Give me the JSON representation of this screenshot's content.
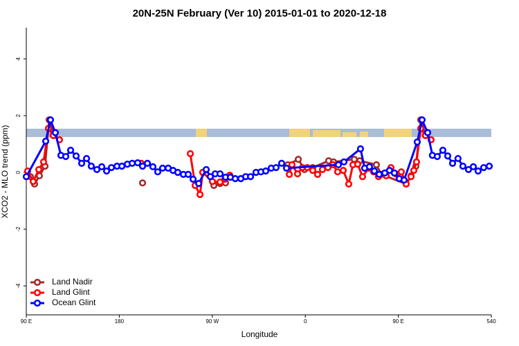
{
  "chart_data": {
    "type": "line",
    "title": "20N-25N February (Ver 10)   2015-01-01 to 2020-12-18",
    "x_label": "Longitude",
    "y_label": "XCO2 - MLO trend (ppm)",
    "xlim": [
      90,
      540
    ],
    "ylim": [
      -5.02,
      5.1
    ],
    "xticks": [
      {
        "value": 90,
        "label": "90 E"
      },
      180,
      {
        "value": 270,
        "label": "90 W"
      },
      {
        "value": 360,
        "label": "0"
      },
      {
        "value": 450,
        "label": "90 E"
      },
      540
    ],
    "yticks": [
      -4,
      -2,
      0,
      2,
      4
    ],
    "legend": "bottomleft",
    "series": [
      {
        "name": "Land Nadir",
        "color": "#a52a2a",
        "x": [
          94,
          98,
          102.7,
          108.1,
          112.1,
          116.8,
          null,
          202.5,
          null,
          271.5,
          277.5,
          282.8,
          null,
          343.1,
          353.2,
          359.2,
          367.2,
          382.6,
          387.3,
          407.4,
          412.7,
          428.8,
          433.5,
          457.6,
          462.3,
          467,
          471.7,
          476.3
        ],
        "values": [
          -0.15,
          -0.41,
          -0.12,
          0.22,
          1.85,
          1.3,
          null,
          -0.37,
          null,
          -0.46,
          -0.39,
          -0.37,
          null,
          0.27,
          0.46,
          0.1,
          0.17,
          0.41,
          0.37,
          0.46,
          0.41,
          0.27,
          -0.07,
          -0.41,
          -0.12,
          0.22,
          1.85,
          1.3
        ]
      },
      {
        "name": "Land Glint",
        "color": "#ff0000",
        "x": [
          91.3,
          96.7,
          102.1,
          106.7,
          111.4,
          116.1,
          122.1,
          null,
          201.2,
          null,
          248.7,
          253.4,
          258.1,
          260.7,
          270.1,
          277.5,
          282.2,
          286.9,
          null,
          344.5,
          347.1,
          352.5,
          357.2,
          361.9,
          367.2,
          371.9,
          376.6,
          381.9,
          386.6,
          391.3,
          396.7,
          402,
          406.1,
          410.7,
          415.4,
          421.4,
          426.1,
          430.8,
          438.2,
          442.9,
          447.6,
          452.9,
          457.6,
          462.3,
          465,
          467.6,
          471.7,
          476.3,
          481.7
        ],
        "values": [
          0.05,
          -0.32,
          0.1,
          0.37,
          1.55,
          1.3,
          1.15,
          null,
          0.32,
          null,
          0.66,
          -0.46,
          -0.78,
          0,
          -0.32,
          -0.34,
          -0.24,
          -0.1,
          null,
          -0.07,
          0.27,
          -0.05,
          0.17,
          0.17,
          0.07,
          -0.07,
          0.1,
          0.17,
          0.27,
          0.02,
          0.07,
          -0.41,
          0.27,
          0.29,
          -0.15,
          0.15,
          0.02,
          -0.15,
          -0.12,
          0.17,
          -0.05,
          0.02,
          -0.41,
          -0.15,
          0.07,
          0.37,
          1.55,
          1.3,
          1.15
        ]
      },
      {
        "name": "Ocean Glint",
        "color": "#0000ff",
        "x": [
          90,
          108.8,
          113.4,
          118.1,
          123.5,
          128.2,
          132.9,
          138.2,
          143.6,
          148.3,
          152.9,
          158.3,
          163,
          167.7,
          172.4,
          177.8,
          182.5,
          187.8,
          192.5,
          197.8,
          202.5,
          207.2,
          212.5,
          217.2,
          221.9,
          227.3,
          232,
          236.6,
          242,
          246.7,
          251.4,
          256.8,
          264.1,
          268.1,
          272.8,
          277.5,
          282.8,
          287.5,
          292.2,
          297.6,
          302.3,
          307,
          312.3,
          317,
          321.7,
          327,
          331.7,
          337.1,
          341.8,
          392,
          397.4,
          413.4,
          417.4,
          422.1,
          426.8,
          431.5,
          436.9,
          441.5,
          446.2,
          450.9,
          455.6,
          468.3,
          473,
          478.4,
          483,
          487.7,
          493.1,
          497.8,
          502.5,
          507.8,
          512.5,
          517.9,
          522.6,
          527.2,
          532.6,
          538
        ],
        "values": [
          -0.15,
          1.1,
          1.85,
          1.4,
          0.6,
          0.56,
          0.78,
          0.58,
          0.32,
          0.49,
          0.22,
          0.1,
          0.2,
          0.05,
          0.17,
          0.22,
          0.22,
          0.29,
          0.32,
          0.34,
          0.22,
          0.32,
          0.2,
          0.02,
          0.15,
          0.15,
          0.07,
          0,
          -0.07,
          -0.07,
          -0.24,
          -0.39,
          0.1,
          -0.15,
          -0.05,
          -0.05,
          -0.17,
          -0.17,
          -0.22,
          -0.22,
          -0.15,
          -0.15,
          0,
          0.02,
          0.05,
          0.15,
          0.17,
          0.32,
          0.15,
          0.27,
          0.37,
          0.83,
          0.15,
          0.2,
          0.05,
          -0.07,
          -0.02,
          0.07,
          -0.02,
          -0.22,
          -0.27,
          1.07,
          1.85,
          1.4,
          0.6,
          0.56,
          0.78,
          0.58,
          0.32,
          0.49,
          0.22,
          0.1,
          0.2,
          0.05,
          0.17,
          0.22
        ]
      }
    ]
  }
}
